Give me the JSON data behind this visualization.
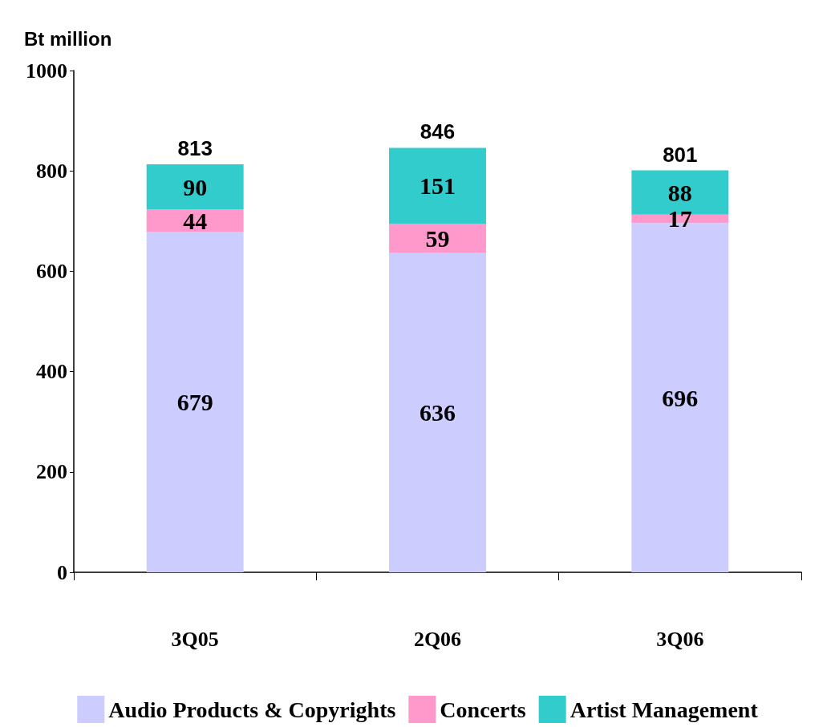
{
  "chart_data": {
    "type": "bar",
    "ylabel": "Bt million",
    "stacked": true,
    "categories": [
      "3Q05",
      "2Q06",
      "3Q06"
    ],
    "series": [
      {
        "name": "Audio Products & Copyrights",
        "color": "#ccccff",
        "values": [
          679,
          636,
          696
        ]
      },
      {
        "name": "Concerts",
        "color": "#ff99cc",
        "values": [
          44,
          59,
          17
        ]
      },
      {
        "name": "Artist Management",
        "color": "#33cccc",
        "values": [
          90,
          151,
          88
        ]
      }
    ],
    "totals": [
      "813",
      "846",
      "801"
    ],
    "data_labels": true,
    "ylim": [
      0,
      1000
    ],
    "yticks": [
      0,
      200,
      400,
      600,
      800,
      1000
    ],
    "grid": false,
    "legend": "bottom"
  }
}
